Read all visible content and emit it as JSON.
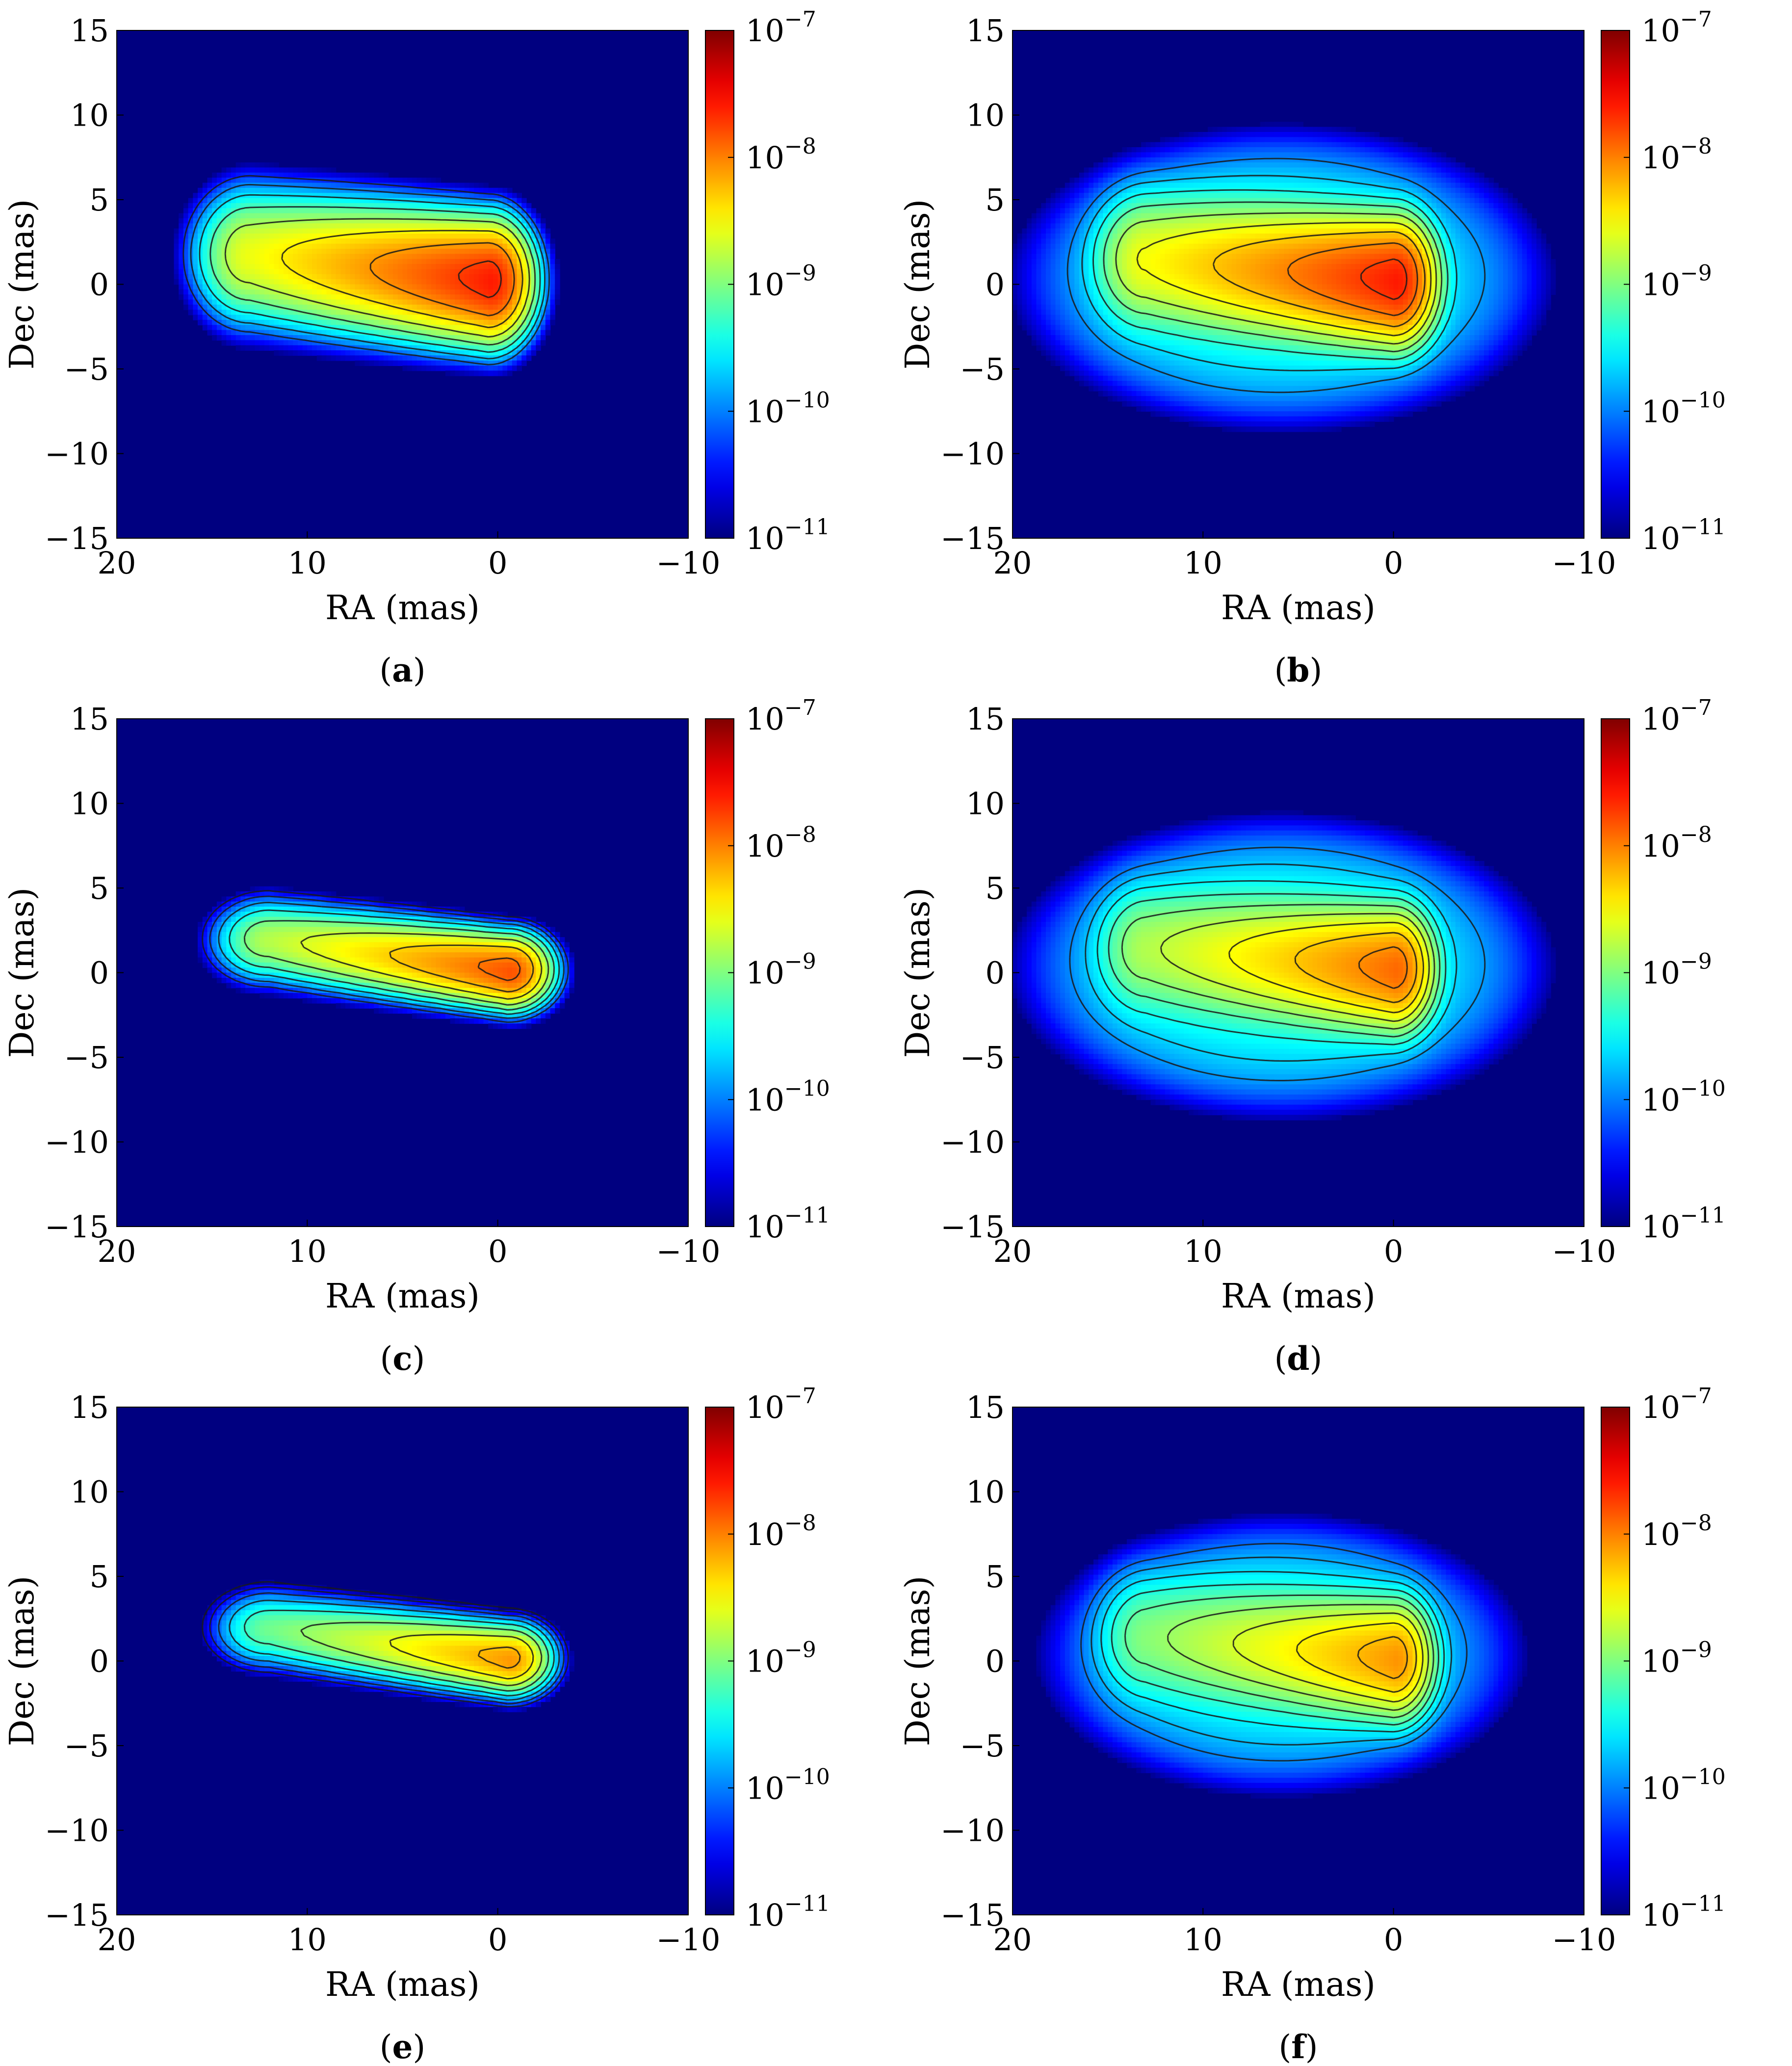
{
  "figure": {
    "panels": [
      {
        "id": "a",
        "label": "a"
      },
      {
        "id": "b",
        "label": "b"
      },
      {
        "id": "c",
        "label": "c"
      },
      {
        "id": "d",
        "label": "d"
      },
      {
        "id": "e",
        "label": "e"
      },
      {
        "id": "f",
        "label": "f"
      }
    ]
  },
  "chart_data": [
    {
      "type": "heatmap",
      "panel": "a",
      "xlabel": "RA (mas)",
      "ylabel": "Dec (mas)",
      "xlim": [
        20,
        -10
      ],
      "ylim": [
        -15,
        15
      ],
      "x_ticks": [
        "20",
        "10",
        "0",
        "−10"
      ],
      "x_tick_values": [
        20,
        10,
        0,
        -10
      ],
      "y_ticks": [
        "15",
        "10",
        "5",
        "0",
        "−5",
        "−10",
        "−15"
      ],
      "y_tick_values": [
        15,
        10,
        5,
        0,
        -5,
        -10,
        -15
      ],
      "colorbar": {
        "scale": "log",
        "range": [
          1e-11,
          1e-07
        ],
        "ticks": [
          {
            "value": 1e-07,
            "base": "10",
            "exp": "−7"
          },
          {
            "value": 1e-08,
            "base": "10",
            "exp": "−8"
          },
          {
            "value": 1e-09,
            "base": "10",
            "exp": "−9"
          },
          {
            "value": 1e-10,
            "base": "10",
            "exp": "−10"
          },
          {
            "value": 1e-11,
            "base": "10",
            "exp": "−11"
          }
        ]
      },
      "emission": {
        "head_ra": 0.5,
        "tail_ra": 13,
        "dec_at_head": 0.3,
        "dec_at_tail": 1.8,
        "half_width_dec": 2.6,
        "peak": 2.5e-08,
        "halo_peak": 0,
        "halo_ra": 5,
        "halo_dec": 0,
        "halo_width_ra": 9,
        "halo_width_dec": 6
      }
    },
    {
      "type": "heatmap",
      "panel": "b",
      "xlabel": "RA (mas)",
      "ylabel": "Dec (mas)",
      "xlim": [
        20,
        -10
      ],
      "ylim": [
        -15,
        15
      ],
      "x_ticks": [
        "20",
        "10",
        "0",
        "−10"
      ],
      "x_tick_values": [
        20,
        10,
        0,
        -10
      ],
      "y_ticks": [
        "15",
        "10",
        "5",
        "0",
        "−5",
        "−10",
        "−15"
      ],
      "y_tick_values": [
        15,
        10,
        5,
        0,
        -5,
        -10,
        -15
      ],
      "colorbar": {
        "scale": "log",
        "range": [
          1e-11,
          1e-07
        ],
        "ticks": [
          {
            "value": 1e-07,
            "base": "10",
            "exp": "−7"
          },
          {
            "value": 1e-08,
            "base": "10",
            "exp": "−8"
          },
          {
            "value": 1e-09,
            "base": "10",
            "exp": "−9"
          },
          {
            "value": 1e-10,
            "base": "10",
            "exp": "−10"
          },
          {
            "value": 1e-11,
            "base": "10",
            "exp": "−11"
          }
        ]
      },
      "emission": {
        "head_ra": 0,
        "tail_ra": 13,
        "dec_at_head": 0.3,
        "dec_at_tail": 1.5,
        "half_width_dec": 2.8,
        "peak": 2.5e-08,
        "halo_peak": 3e-10,
        "halo_ra": 6,
        "halo_dec": 0.5,
        "halo_width_ra": 11,
        "halo_width_dec": 7
      }
    },
    {
      "type": "heatmap",
      "panel": "c",
      "xlabel": "RA (mas)",
      "ylabel": "Dec (mas)",
      "xlim": [
        20,
        -10
      ],
      "ylim": [
        -15,
        15
      ],
      "x_ticks": [
        "20",
        "10",
        "0",
        "−10"
      ],
      "x_tick_values": [
        20,
        10,
        0,
        -10
      ],
      "y_ticks": [
        "15",
        "10",
        "5",
        "0",
        "−5",
        "−10",
        "−15"
      ],
      "y_tick_values": [
        15,
        10,
        5,
        0,
        -5,
        -10,
        -15
      ],
      "colorbar": {
        "scale": "log",
        "range": [
          1e-11,
          1e-07
        ],
        "ticks": [
          {
            "value": 1e-07,
            "base": "10",
            "exp": "−7"
          },
          {
            "value": 1e-08,
            "base": "10",
            "exp": "−8"
          },
          {
            "value": 1e-09,
            "base": "10",
            "exp": "−9"
          },
          {
            "value": 1e-10,
            "base": "10",
            "exp": "−10"
          },
          {
            "value": 1e-11,
            "base": "10",
            "exp": "−11"
          }
        ]
      },
      "emission": {
        "head_ra": -0.5,
        "tail_ra": 12,
        "dec_at_head": 0.2,
        "dec_at_tail": 2.0,
        "half_width_dec": 1.6,
        "peak": 1.5e-08,
        "halo_peak": 0,
        "halo_ra": 5,
        "halo_dec": 0,
        "halo_width_ra": 9,
        "halo_width_dec": 6
      }
    },
    {
      "type": "heatmap",
      "panel": "d",
      "xlabel": "RA (mas)",
      "ylabel": "Dec (mas)",
      "xlim": [
        20,
        -10
      ],
      "ylim": [
        -15,
        15
      ],
      "x_ticks": [
        "20",
        "10",
        "0",
        "−10"
      ],
      "x_tick_values": [
        20,
        10,
        0,
        -10
      ],
      "y_ticks": [
        "15",
        "10",
        "5",
        "0",
        "−5",
        "−10",
        "−15"
      ],
      "y_tick_values": [
        15,
        10,
        5,
        0,
        -5,
        -10,
        -15
      ],
      "colorbar": {
        "scale": "log",
        "range": [
          1e-11,
          1e-07
        ],
        "ticks": [
          {
            "value": 1e-07,
            "base": "10",
            "exp": "−7"
          },
          {
            "value": 1e-08,
            "base": "10",
            "exp": "−8"
          },
          {
            "value": 1e-09,
            "base": "10",
            "exp": "−9"
          },
          {
            "value": 1e-10,
            "base": "10",
            "exp": "−10"
          },
          {
            "value": 1e-11,
            "base": "10",
            "exp": "−11"
          }
        ]
      },
      "emission": {
        "head_ra": 0,
        "tail_ra": 13,
        "dec_at_head": 0.3,
        "dec_at_tail": 1.5,
        "half_width_dec": 2.8,
        "peak": 1.2e-08,
        "halo_peak": 3e-10,
        "halo_ra": 6,
        "halo_dec": 0.5,
        "halo_width_ra": 11,
        "halo_width_dec": 7
      }
    },
    {
      "type": "heatmap",
      "panel": "e",
      "xlabel": "RA (mas)",
      "ylabel": "Dec (mas)",
      "xlim": [
        20,
        -10
      ],
      "ylim": [
        -15,
        15
      ],
      "x_ticks": [
        "20",
        "10",
        "0",
        "−10"
      ],
      "x_tick_values": [
        20,
        10,
        0,
        -10
      ],
      "y_ticks": [
        "15",
        "10",
        "5",
        "0",
        "−5",
        "−10",
        "−15"
      ],
      "y_tick_values": [
        15,
        10,
        5,
        0,
        -5,
        -10,
        -15
      ],
      "colorbar": {
        "scale": "log",
        "range": [
          1e-11,
          1e-07
        ],
        "ticks": [
          {
            "value": 1e-07,
            "base": "10",
            "exp": "−7"
          },
          {
            "value": 1e-08,
            "base": "10",
            "exp": "−8"
          },
          {
            "value": 1e-09,
            "base": "10",
            "exp": "−9"
          },
          {
            "value": 1e-10,
            "base": "10",
            "exp": "−10"
          },
          {
            "value": 1e-11,
            "base": "10",
            "exp": "−11"
          }
        ]
      },
      "emission": {
        "head_ra": -0.5,
        "tail_ra": 12,
        "dec_at_head": 0.2,
        "dec_at_tail": 2.0,
        "half_width_dec": 1.5,
        "peak": 8e-09,
        "halo_peak": 0,
        "halo_ra": 5,
        "halo_dec": 0,
        "halo_width_ra": 9,
        "halo_width_dec": 6
      }
    },
    {
      "type": "heatmap",
      "panel": "f",
      "xlabel": "RA (mas)",
      "ylabel": "Dec (mas)",
      "xlim": [
        20,
        -10
      ],
      "ylim": [
        -15,
        15
      ],
      "x_ticks": [
        "20",
        "10",
        "0",
        "−10"
      ],
      "x_tick_values": [
        20,
        10,
        0,
        -10
      ],
      "y_ticks": [
        "15",
        "10",
        "5",
        "0",
        "−5",
        "−10",
        "−15"
      ],
      "y_tick_values": [
        15,
        10,
        5,
        0,
        -5,
        -10,
        -15
      ],
      "colorbar": {
        "scale": "log",
        "range": [
          1e-11,
          1e-07
        ],
        "ticks": [
          {
            "value": 1e-07,
            "base": "10",
            "exp": "−7"
          },
          {
            "value": 1e-08,
            "base": "10",
            "exp": "−8"
          },
          {
            "value": 1e-09,
            "base": "10",
            "exp": "−9"
          },
          {
            "value": 1e-10,
            "base": "10",
            "exp": "−10"
          },
          {
            "value": 1e-11,
            "base": "10",
            "exp": "−11"
          }
        ]
      },
      "emission": {
        "head_ra": 0,
        "tail_ra": 13,
        "dec_at_head": 0.2,
        "dec_at_tail": 1.5,
        "half_width_dec": 2.8,
        "peak": 8e-09,
        "halo_peak": 2.5e-10,
        "halo_ra": 6,
        "halo_dec": 0.5,
        "halo_width_ra": 10,
        "halo_width_dec": 6.5
      }
    }
  ]
}
